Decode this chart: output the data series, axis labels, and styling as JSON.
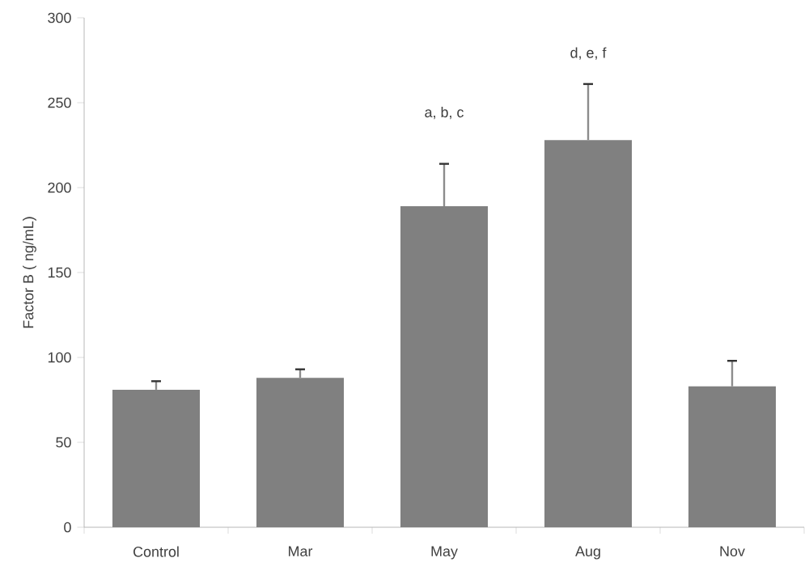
{
  "chart_data": {
    "type": "bar",
    "ylabel": "Factor B ( ng/mL)",
    "categories": [
      "Control",
      "Mar",
      "May",
      "Aug",
      "Nov"
    ],
    "values": [
      81,
      88,
      189,
      228,
      83
    ],
    "errors": [
      [
        81,
        86
      ],
      [
        88,
        93
      ],
      [
        189,
        214
      ],
      [
        228,
        261
      ],
      [
        83,
        98
      ]
    ],
    "color": "#808080",
    "ylim": [
      0,
      300
    ],
    "yticks": [
      0,
      50,
      100,
      150,
      200,
      250,
      300
    ],
    "annotations": [
      "a, b, c",
      "d, e, f"
    ]
  }
}
